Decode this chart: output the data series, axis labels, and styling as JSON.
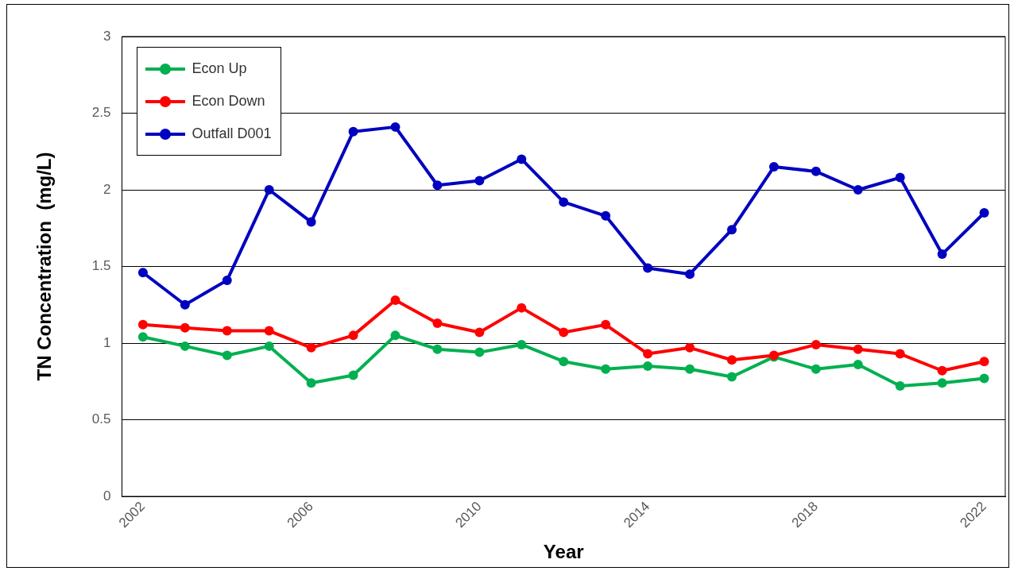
{
  "chart_data": {
    "type": "line",
    "xlabel": "Year",
    "ylabel": "TN Concentration  (mg/L)",
    "x": [
      2002,
      2003,
      2004,
      2005,
      2006,
      2007,
      2008,
      2009,
      2010,
      2011,
      2012,
      2013,
      2014,
      2015,
      2016,
      2017,
      2018,
      2019,
      2020,
      2021,
      2022
    ],
    "series": [
      {
        "name": "Econ Up",
        "color": "#00b050",
        "values": [
          1.04,
          0.98,
          0.92,
          0.98,
          0.74,
          0.79,
          1.05,
          0.96,
          0.94,
          0.99,
          0.88,
          0.83,
          0.85,
          0.83,
          0.78,
          0.91,
          0.83,
          0.86,
          0.72,
          0.74,
          0.77
        ]
      },
      {
        "name": "Econ Down",
        "color": "#ff0000",
        "values": [
          1.12,
          1.1,
          1.08,
          1.08,
          0.97,
          1.05,
          1.28,
          1.13,
          1.07,
          1.23,
          1.07,
          1.12,
          0.93,
          0.97,
          0.89,
          0.92,
          0.99,
          0.96,
          0.93,
          0.82,
          0.88
        ]
      },
      {
        "name": "Outfall D001",
        "color": "#0000c0",
        "values": [
          1.46,
          1.25,
          1.41,
          2.0,
          1.79,
          2.38,
          2.41,
          2.03,
          2.06,
          2.2,
          1.92,
          1.83,
          1.49,
          1.45,
          1.74,
          2.15,
          2.12,
          2.0,
          2.08,
          1.58,
          1.85
        ]
      }
    ],
    "xlim": [
      2001.5,
      2022.5
    ],
    "xticks": [
      2002,
      2006,
      2010,
      2014,
      2018,
      2022
    ],
    "ylim": [
      0,
      3
    ],
    "yticks": [
      0,
      0.5,
      1,
      1.5,
      2,
      2.5,
      3
    ],
    "grid": "y",
    "legend": "top left",
    "marker": "circle",
    "line_style": "solid"
  }
}
